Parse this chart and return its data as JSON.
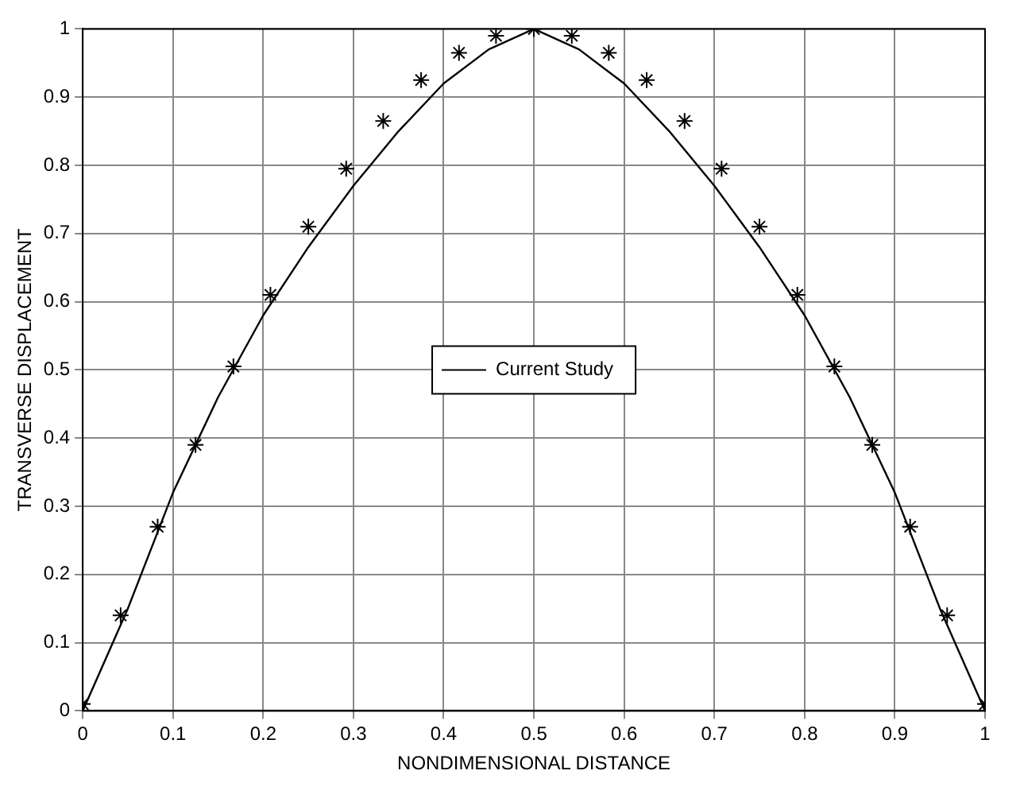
{
  "chart_data": {
    "type": "line",
    "xlabel": "NONDIMENSIONAL DISTANCE",
    "ylabel": "TRANSVERSE DISPLACEMENT",
    "xlim": [
      0,
      1
    ],
    "ylim": [
      0,
      1
    ],
    "xticks": [
      0,
      0.1,
      0.2,
      0.3,
      0.4,
      0.5,
      0.6,
      0.7,
      0.8,
      0.9,
      1
    ],
    "yticks": [
      0,
      0.1,
      0.2,
      0.3,
      0.4,
      0.5,
      0.6,
      0.7,
      0.8,
      0.9,
      1
    ],
    "grid": true,
    "legend": "center",
    "series": [
      {
        "name": "Current Study",
        "color": "#000000",
        "marker": "none",
        "line_style": "solid",
        "x": [
          0,
          0.05,
          0.1,
          0.15,
          0.2,
          0.25,
          0.3,
          0.35,
          0.4,
          0.45,
          0.5,
          0.55,
          0.6,
          0.65,
          0.7,
          0.75,
          0.8,
          0.85,
          0.9,
          0.95,
          1
        ],
        "values": [
          0,
          0.15,
          0.32,
          0.46,
          0.58,
          0.68,
          0.77,
          0.85,
          0.92,
          0.97,
          1,
          0.97,
          0.92,
          0.85,
          0.77,
          0.68,
          0.58,
          0.46,
          0.32,
          0.15,
          0
        ]
      },
      {
        "type": "scatter",
        "color": "#000000",
        "marker": "cross",
        "x": [
          0,
          0.042,
          0.083,
          0.125,
          0.167,
          0.208,
          0.25,
          0.292,
          0.333,
          0.375,
          0.417,
          0.458,
          0.5,
          0.542,
          0.583,
          0.625,
          0.667,
          0.708,
          0.75,
          0.792,
          0.833,
          0.875,
          0.917,
          0.958,
          1
        ],
        "values": [
          0.01,
          0.14,
          0.27,
          0.39,
          0.505,
          0.61,
          0.71,
          0.795,
          0.865,
          0.925,
          0.965,
          0.99,
          1,
          0.99,
          0.965,
          0.925,
          0.865,
          0.795,
          0.71,
          0.61,
          0.505,
          0.39,
          0.27,
          0.14,
          0.01
        ]
      }
    ]
  }
}
